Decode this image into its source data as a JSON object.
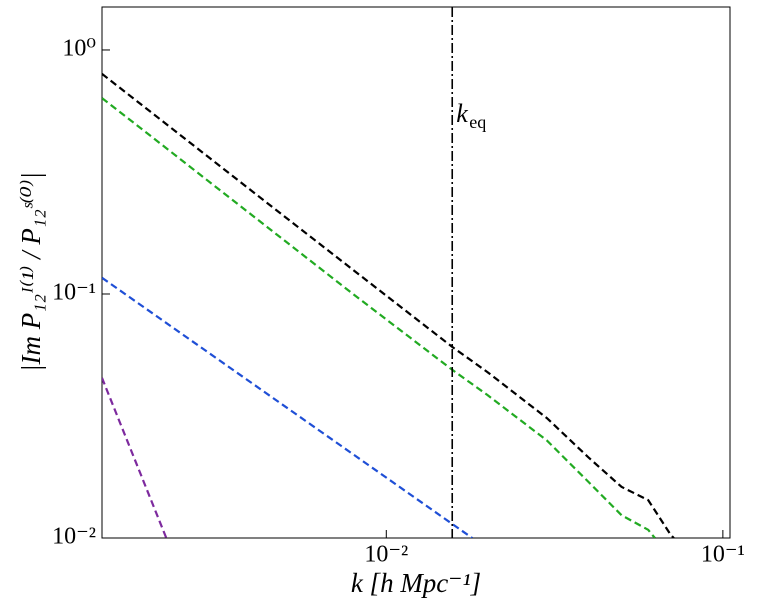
{
  "chart_data": {
    "type": "line",
    "xlabel": "k [h Mpc⁻¹]",
    "ylabel": "|Im P₁₂ᴵ⁽¹⁾ / P₁₂ˢ⁽⁰⁾|",
    "xscale": "log",
    "yscale": "log",
    "xlim": [
      0.00143,
      0.105
    ],
    "ylim": [
      0.01,
      1.5
    ],
    "xticks": [
      {
        "value": 0.01,
        "label": "10⁻²"
      },
      {
        "value": 0.1,
        "label": "10⁻¹"
      }
    ],
    "yticks": [
      {
        "value": 0.01,
        "label": "10⁻²"
      },
      {
        "value": 0.1,
        "label": "10⁻¹"
      },
      {
        "value": 1,
        "label": "10⁰"
      }
    ],
    "vline": {
      "x": 0.0157,
      "color": "#000000",
      "label": "k",
      "subscript": "eq"
    },
    "series": [
      {
        "color": "#000000",
        "x": [
          0.00143,
          0.002,
          0.003,
          0.005,
          0.008,
          0.0157,
          0.02,
          0.03,
          0.04,
          0.05,
          0.06,
          0.07,
          0.0715
        ],
        "values": [
          0.798,
          0.556,
          0.359,
          0.207,
          0.125,
          0.0607,
          0.0478,
          0.031,
          0.0213,
          0.0162,
          0.0143,
          0.0103,
          0.01
        ]
      },
      {
        "color": "#22aa22",
        "x": [
          0.00143,
          0.002,
          0.003,
          0.005,
          0.008,
          0.0157,
          0.02,
          0.03,
          0.04,
          0.05,
          0.06,
          0.0628
        ],
        "values": [
          0.635,
          0.443,
          0.286,
          0.165,
          0.0995,
          0.0489,
          0.0385,
          0.0251,
          0.0169,
          0.0124,
          0.0108,
          0.01
        ]
      },
      {
        "color": "#1f4fd6",
        "x": [
          0.00143,
          0.018
        ],
        "values": [
          0.1165,
          0.01
        ]
      },
      {
        "color": "#7d2a9e",
        "x": [
          0.00143,
          0.00222
        ],
        "values": [
          0.0453,
          0.01
        ]
      }
    ]
  }
}
